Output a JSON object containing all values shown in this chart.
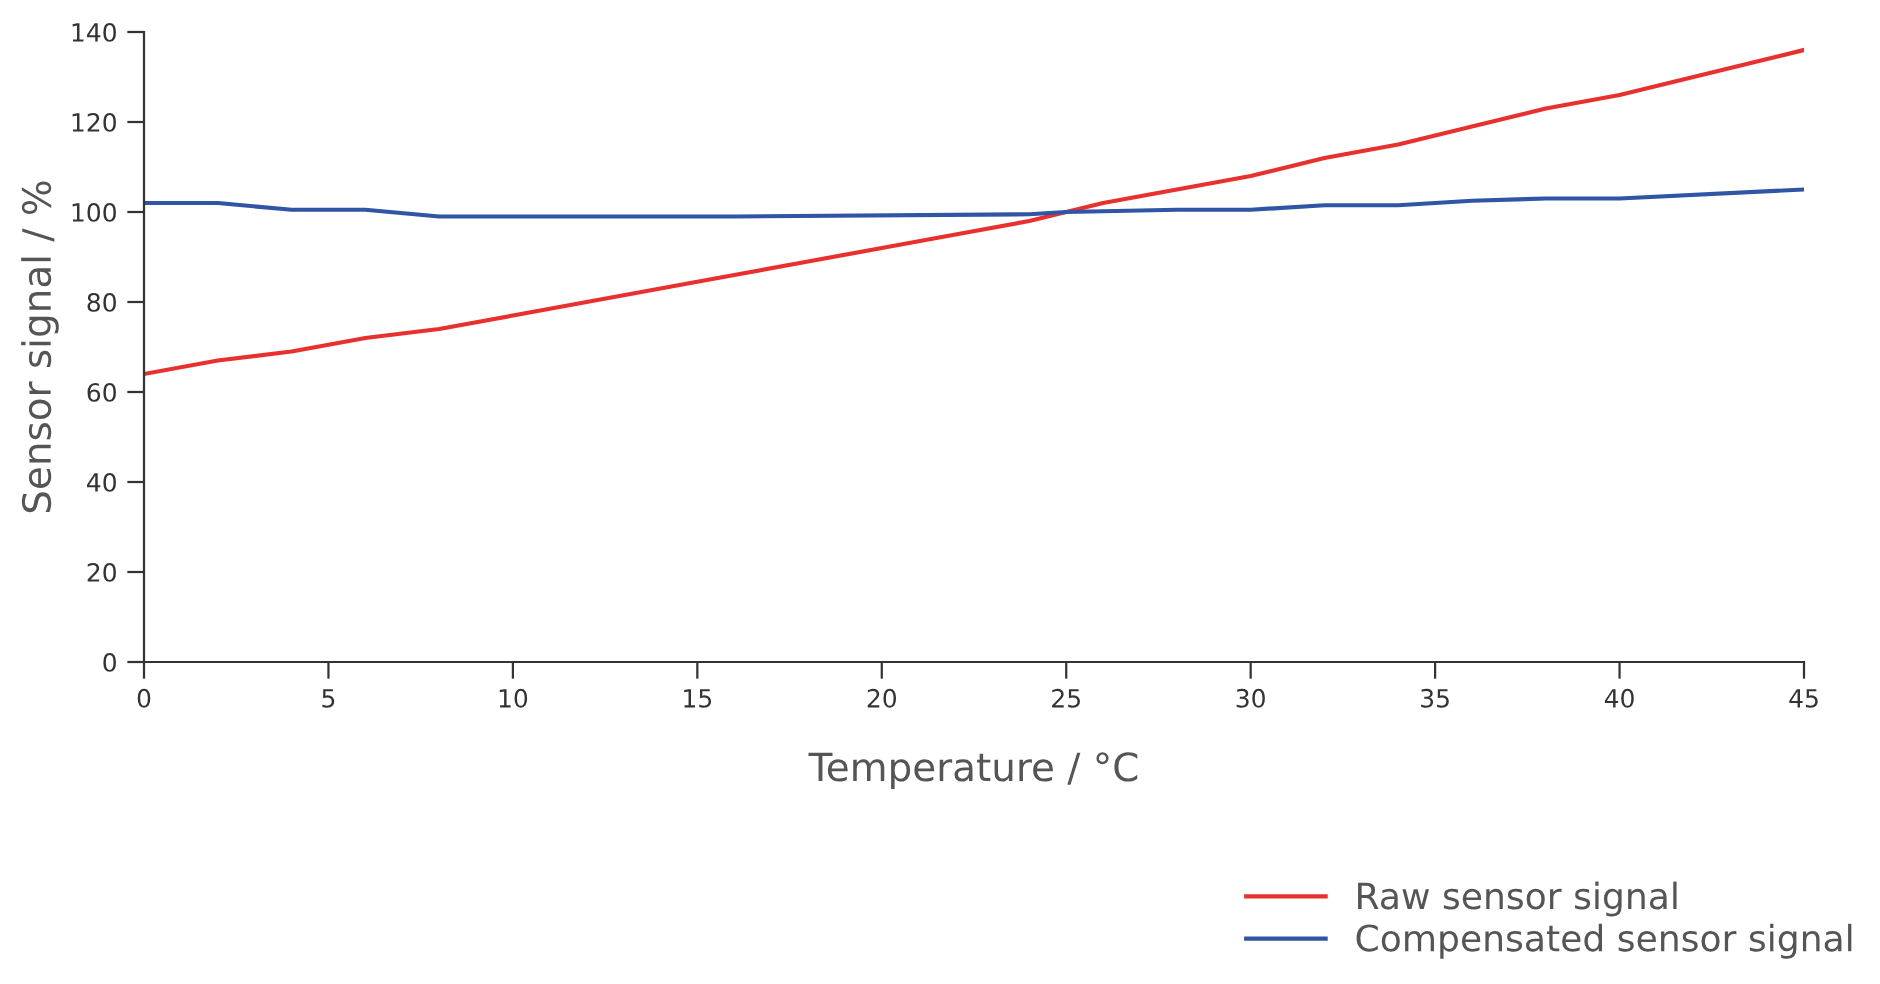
{
  "chart_data": {
    "type": "line",
    "xlabel": "Temperature / °C",
    "ylabel": "Sensor signal / %",
    "xlim": [
      0,
      45
    ],
    "xticks": [
      0,
      5,
      10,
      15,
      20,
      25,
      30,
      35,
      40,
      45
    ],
    "ylim": [
      0,
      140
    ],
    "yticks": [
      0,
      20,
      40,
      60,
      80,
      100,
      120,
      140
    ],
    "grid": false,
    "legend": "bottom right",
    "marker": "none",
    "line_style": "solid",
    "series": [
      {
        "name": "Raw sensor signal",
        "color": "#e8312f",
        "x": [
          0,
          2,
          4,
          6,
          8,
          10,
          12,
          14,
          16,
          18,
          20,
          22,
          24,
          25,
          26,
          28,
          30,
          32,
          34,
          36,
          38,
          40,
          42,
          45
        ],
        "values": [
          64,
          67,
          69,
          72,
          74,
          77,
          80,
          83,
          86,
          89,
          92,
          95,
          98,
          100,
          102,
          105,
          108,
          112,
          115,
          119,
          123,
          126,
          130,
          136
        ]
      },
      {
        "name": "Compensated sensor signal",
        "color": "#2f55a4",
        "x": [
          0,
          2,
          4,
          6,
          8,
          10,
          16,
          24,
          25,
          28,
          30,
          32,
          34,
          36,
          38,
          40,
          45
        ],
        "values": [
          102,
          102,
          100.5,
          100.5,
          99,
          99,
          99,
          99.5,
          100,
          100.5,
          100.5,
          101.5,
          101.5,
          102.5,
          103,
          103,
          105
        ]
      }
    ]
  }
}
